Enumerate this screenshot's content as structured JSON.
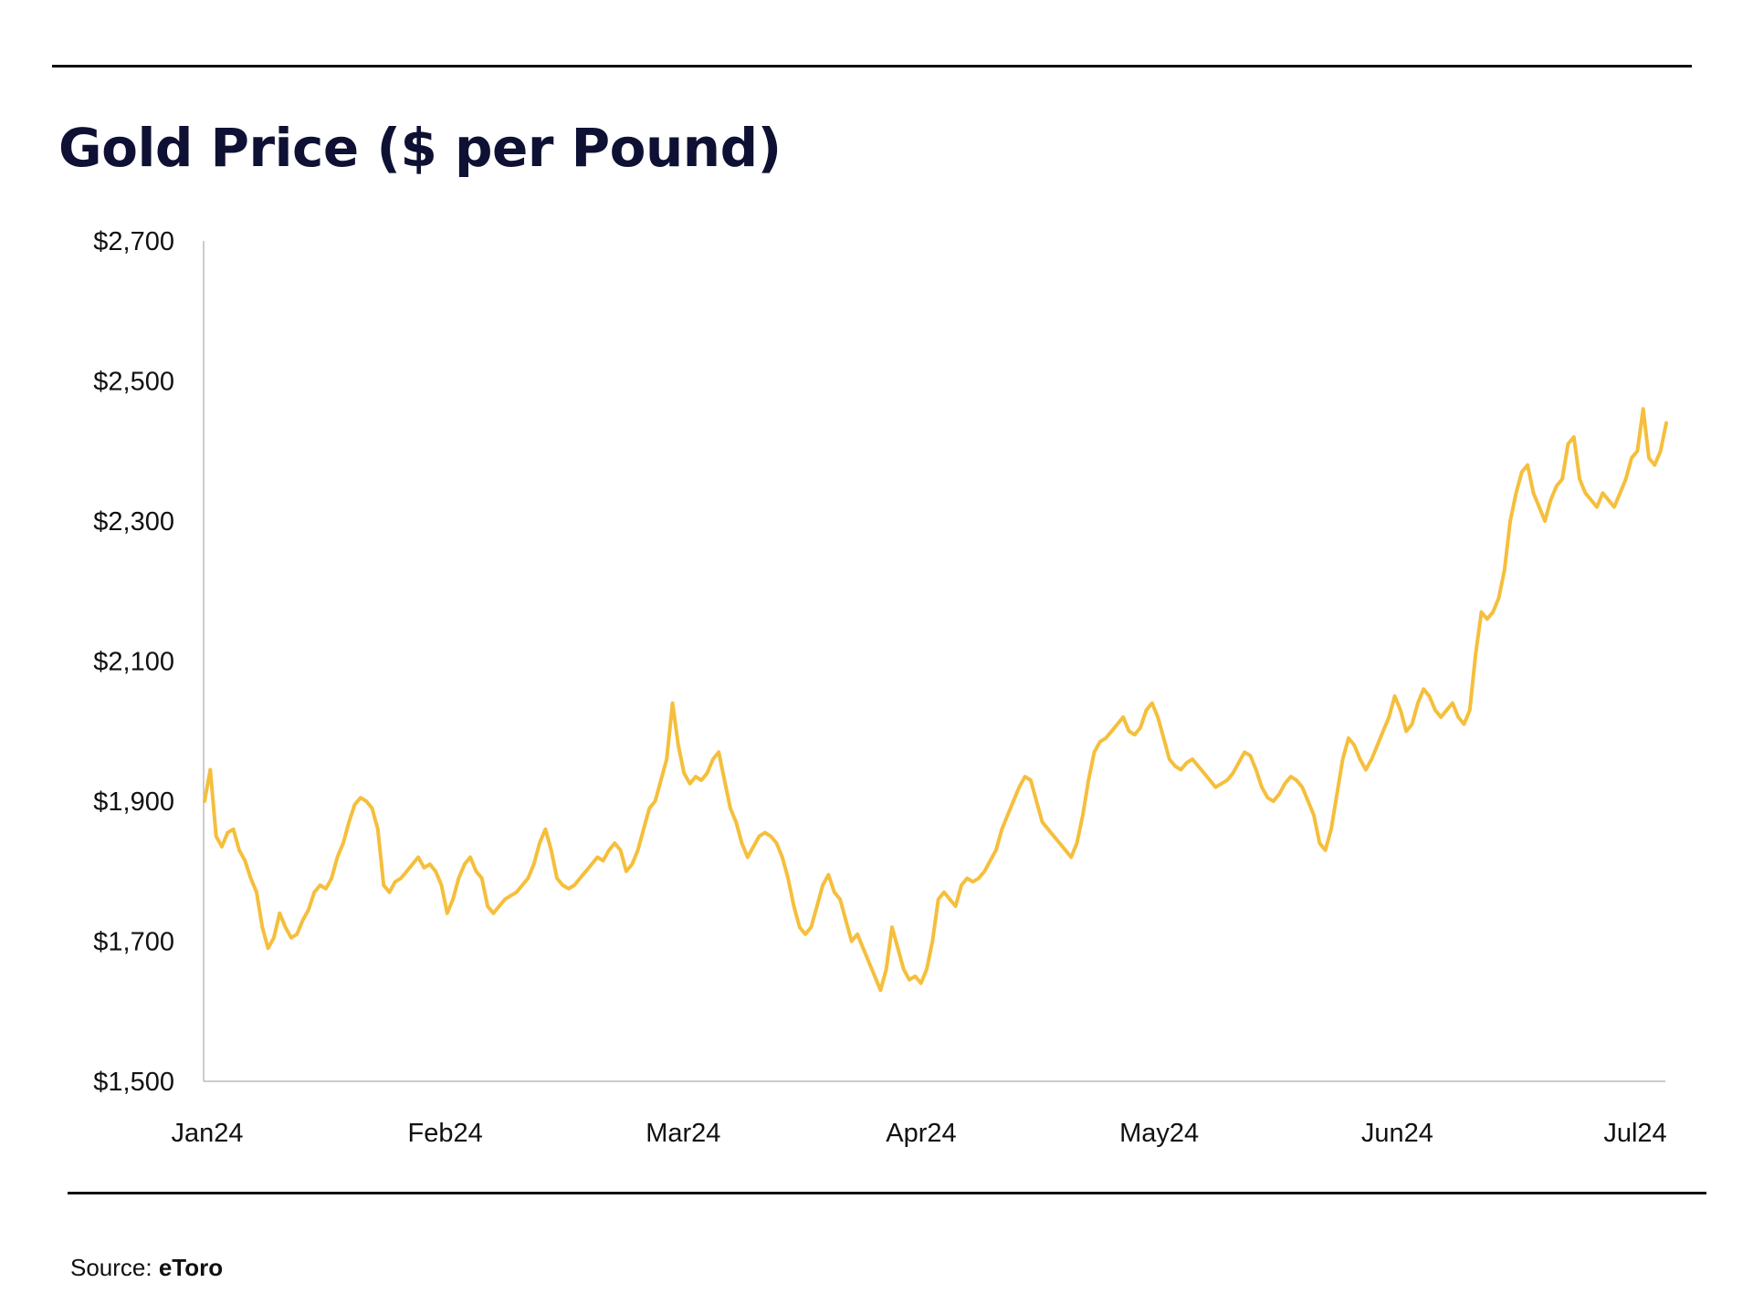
{
  "title": "Gold Price ($ per Pound)",
  "source": {
    "label": "Source:",
    "name": "eToro"
  },
  "colors": {
    "line": "#F5BF3C",
    "title": "#0E1133",
    "axis": "#BBBBBB",
    "text": "#111111"
  },
  "chart_data": {
    "type": "line",
    "title": "Gold Price ($ per Pound)",
    "xlabel": "",
    "ylabel": "",
    "ylim": [
      1500,
      2700
    ],
    "yticks": [
      "$1,500",
      "$1,700",
      "$1,900",
      "$2,100",
      "$2,300",
      "$2,500",
      "$2,700"
    ],
    "ytick_values": [
      1500,
      1700,
      1900,
      2100,
      2300,
      2500,
      2700
    ],
    "xticks": [
      "Jan24",
      "Feb24",
      "Mar24",
      "Apr24",
      "May24",
      "Jun24",
      "Jul24"
    ],
    "grid": false,
    "legend": false,
    "series": [
      {
        "values": [
          1900,
          1945,
          1850,
          1835,
          1855,
          1860,
          1830,
          1815,
          1790,
          1770,
          1720,
          1690,
          1705,
          1740,
          1720,
          1705,
          1710,
          1730,
          1745,
          1770,
          1780,
          1775,
          1790,
          1820,
          1840,
          1870,
          1895,
          1905,
          1900,
          1890,
          1860,
          1780,
          1770,
          1785,
          1790,
          1800,
          1810,
          1820,
          1805,
          1810,
          1800,
          1780,
          1740,
          1760,
          1790,
          1810,
          1820,
          1800,
          1790,
          1750,
          1740,
          1750,
          1760,
          1765,
          1770,
          1780,
          1790,
          1810,
          1840,
          1860,
          1830,
          1790,
          1780,
          1775,
          1780,
          1790,
          1800,
          1810,
          1820,
          1815,
          1830,
          1840,
          1830,
          1800,
          1810,
          1830,
          1860,
          1890,
          1900,
          1930,
          1960,
          2040,
          1980,
          1940,
          1925,
          1935,
          1930,
          1940,
          1960,
          1970,
          1930,
          1890,
          1870,
          1840,
          1820,
          1835,
          1850,
          1855,
          1850,
          1840,
          1820,
          1790,
          1750,
          1720,
          1710,
          1720,
          1750,
          1780,
          1795,
          1770,
          1760,
          1730,
          1700,
          1710,
          1690,
          1670,
          1650,
          1630,
          1660,
          1720,
          1690,
          1660,
          1645,
          1650,
          1640,
          1660,
          1700,
          1760,
          1770,
          1760,
          1750,
          1780,
          1790,
          1785,
          1790,
          1800,
          1815,
          1830,
          1860,
          1880,
          1900,
          1920,
          1935,
          1930,
          1900,
          1870,
          1860,
          1850,
          1840,
          1830,
          1820,
          1840,
          1880,
          1930,
          1970,
          1985,
          1990,
          2000,
          2010,
          2020,
          2000,
          1995,
          2005,
          2030,
          2040,
          2020,
          1990,
          1960,
          1950,
          1945,
          1955,
          1960,
          1950,
          1940,
          1930,
          1920,
          1925,
          1930,
          1940,
          1955,
          1970,
          1965,
          1945,
          1920,
          1905,
          1900,
          1910,
          1925,
          1935,
          1930,
          1920,
          1900,
          1880,
          1840,
          1830,
          1860,
          1910,
          1960,
          1990,
          1980,
          1960,
          1945,
          1960,
          1980,
          2000,
          2020,
          2050,
          2030,
          2000,
          2010,
          2040,
          2060,
          2050,
          2030,
          2020,
          2030,
          2040,
          2020,
          2010,
          2030,
          2110,
          2170,
          2160,
          2170,
          2190,
          2230,
          2300,
          2340,
          2370,
          2380,
          2340,
          2320,
          2300,
          2330,
          2350,
          2360,
          2410,
          2420,
          2360,
          2340,
          2330,
          2320,
          2340,
          2330,
          2320,
          2340,
          2360,
          2390,
          2400,
          2460,
          2390,
          2380,
          2400,
          2440
        ]
      }
    ]
  }
}
